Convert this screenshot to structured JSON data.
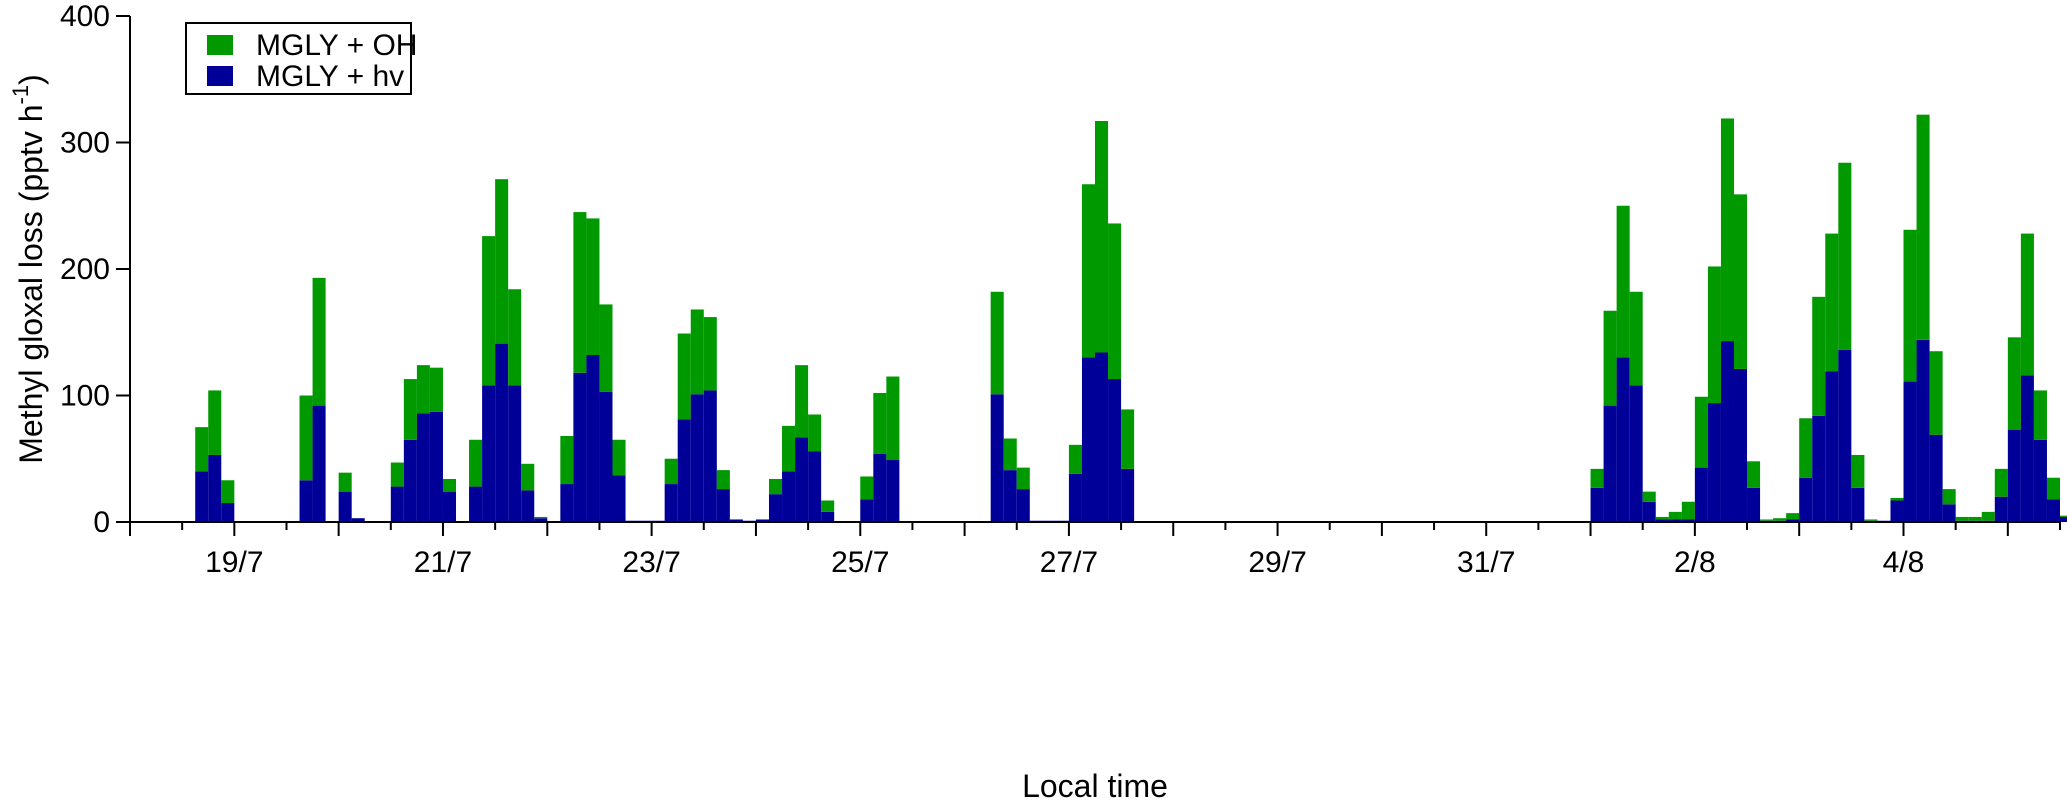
{
  "chart_data": {
    "type": "bar",
    "stacked": true,
    "xlabel": "Local time",
    "ylabel": "Methyl gloxal loss (pptv h",
    "ylabel_superscript": "-1",
    "ylabel_close": ")",
    "ylim": [
      0,
      400
    ],
    "xlim": [
      "18/7 00:00",
      "5/8 12:00"
    ],
    "yticks": [
      0,
      100,
      200,
      300,
      400
    ],
    "xtick_labels": [
      "19/7",
      "21/7",
      "23/7",
      "25/7",
      "27/7",
      "29/7",
      "31/7",
      "2/8",
      "4/8"
    ],
    "xtick_days": [
      1,
      3,
      5,
      7,
      9,
      11,
      13,
      15,
      17
    ],
    "grid": false,
    "legend_position": "top-left",
    "bin_hours": 3,
    "colors": {
      "MGLY + OH": "#009900",
      "MGLY + hv": "#000099"
    },
    "series": [
      {
        "name": "MGLY + hv",
        "color": "#000099",
        "data": [
          [
            "18/7 15:00",
            40
          ],
          [
            "18/7 18:00",
            53
          ],
          [
            "18/7 21:00",
            15
          ],
          [
            "19/7 15:00",
            33
          ],
          [
            "19/7 18:00",
            92
          ],
          [
            "20/7 00:00",
            24
          ],
          [
            "20/7 03:00",
            3
          ],
          [
            "20/7 12:00",
            28
          ],
          [
            "20/7 15:00",
            65
          ],
          [
            "20/7 18:00",
            86
          ],
          [
            "20/7 21:00",
            87
          ],
          [
            "21/7 00:00",
            24
          ],
          [
            "21/7 06:00",
            28
          ],
          [
            "21/7 09:00",
            108
          ],
          [
            "21/7 12:00",
            141
          ],
          [
            "21/7 15:00",
            108
          ],
          [
            "21/7 18:00",
            25
          ],
          [
            "21/7 21:00",
            3
          ],
          [
            "22/7 03:00",
            30
          ],
          [
            "22/7 06:00",
            118
          ],
          [
            "22/7 09:00",
            132
          ],
          [
            "22/7 12:00",
            103
          ],
          [
            "22/7 15:00",
            37
          ],
          [
            "22/7 18:00",
            1
          ],
          [
            "22/7 21:00",
            1
          ],
          [
            "23/7 00:00",
            1
          ],
          [
            "23/7 03:00",
            30
          ],
          [
            "23/7 06:00",
            81
          ],
          [
            "23/7 09:00",
            101
          ],
          [
            "23/7 12:00",
            104
          ],
          [
            "23/7 15:00",
            26
          ],
          [
            "23/7 18:00",
            2
          ],
          [
            "23/7 21:00",
            1
          ],
          [
            "24/7 00:00",
            2
          ],
          [
            "24/7 03:00",
            22
          ],
          [
            "24/7 06:00",
            40
          ],
          [
            "24/7 09:00",
            67
          ],
          [
            "24/7 12:00",
            56
          ],
          [
            "24/7 15:00",
            8
          ],
          [
            "25/7 00:00",
            18
          ],
          [
            "25/7 03:00",
            54
          ],
          [
            "25/7 06:00",
            49
          ],
          [
            "26/7 06:00",
            101
          ],
          [
            "26/7 09:00",
            41
          ],
          [
            "26/7 12:00",
            26
          ],
          [
            "26/7 15:00",
            1
          ],
          [
            "26/7 18:00",
            1
          ],
          [
            "26/7 21:00",
            1
          ],
          [
            "27/7 00:00",
            38
          ],
          [
            "27/7 03:00",
            130
          ],
          [
            "27/7 06:00",
            134
          ],
          [
            "27/7 09:00",
            113
          ],
          [
            "27/7 12:00",
            42
          ],
          [
            "1/8 00:00",
            27
          ],
          [
            "1/8 03:00",
            92
          ],
          [
            "1/8 06:00",
            130
          ],
          [
            "1/8 09:00",
            108
          ],
          [
            "1/8 12:00",
            16
          ],
          [
            "1/8 15:00",
            2
          ],
          [
            "1/8 18:00",
            2
          ],
          [
            "1/8 21:00",
            2
          ],
          [
            "2/8 00:00",
            43
          ],
          [
            "2/8 03:00",
            94
          ],
          [
            "2/8 06:00",
            143
          ],
          [
            "2/8 09:00",
            121
          ],
          [
            "2/8 12:00",
            27
          ],
          [
            "2/8 15:00",
            1
          ],
          [
            "2/8 18:00",
            1
          ],
          [
            "2/8 21:00",
            2
          ],
          [
            "3/8 00:00",
            35
          ],
          [
            "3/8 03:00",
            84
          ],
          [
            "3/8 06:00",
            119
          ],
          [
            "3/8 09:00",
            136
          ],
          [
            "3/8 12:00",
            27
          ],
          [
            "3/8 15:00",
            1
          ],
          [
            "3/8 18:00",
            1
          ],
          [
            "3/8 21:00",
            17
          ],
          [
            "4/8 00:00",
            111
          ],
          [
            "4/8 03:00",
            144
          ],
          [
            "4/8 06:00",
            69
          ],
          [
            "4/8 09:00",
            14
          ],
          [
            "4/8 12:00",
            1
          ],
          [
            "4/8 15:00",
            1
          ],
          [
            "4/8 18:00",
            1
          ],
          [
            "4/8 21:00",
            20
          ],
          [
            "5/8 00:00",
            73
          ],
          [
            "5/8 03:00",
            116
          ],
          [
            "5/8 06:00",
            65
          ],
          [
            "5/8 09:00",
            18
          ],
          [
            "5/8 12:00",
            4
          ]
        ]
      },
      {
        "name": "MGLY + OH",
        "color": "#009900",
        "data": [
          [
            "18/7 15:00",
            35
          ],
          [
            "18/7 18:00",
            51
          ],
          [
            "18/7 21:00",
            18
          ],
          [
            "19/7 15:00",
            67
          ],
          [
            "19/7 18:00",
            101
          ],
          [
            "20/7 00:00",
            15
          ],
          [
            "20/7 03:00",
            0
          ],
          [
            "20/7 12:00",
            19
          ],
          [
            "20/7 15:00",
            48
          ],
          [
            "20/7 18:00",
            38
          ],
          [
            "20/7 21:00",
            35
          ],
          [
            "21/7 00:00",
            10
          ],
          [
            "21/7 06:00",
            37
          ],
          [
            "21/7 09:00",
            118
          ],
          [
            "21/7 12:00",
            130
          ],
          [
            "21/7 15:00",
            76
          ],
          [
            "21/7 18:00",
            21
          ],
          [
            "21/7 21:00",
            1
          ],
          [
            "22/7 03:00",
            38
          ],
          [
            "22/7 06:00",
            127
          ],
          [
            "22/7 09:00",
            108
          ],
          [
            "22/7 12:00",
            69
          ],
          [
            "22/7 15:00",
            28
          ],
          [
            "22/7 18:00",
            0
          ],
          [
            "22/7 21:00",
            0
          ],
          [
            "23/7 00:00",
            0
          ],
          [
            "23/7 03:00",
            20
          ],
          [
            "23/7 06:00",
            68
          ],
          [
            "23/7 09:00",
            67
          ],
          [
            "23/7 12:00",
            58
          ],
          [
            "23/7 15:00",
            15
          ],
          [
            "23/7 18:00",
            0
          ],
          [
            "23/7 21:00",
            0
          ],
          [
            "24/7 00:00",
            0
          ],
          [
            "24/7 03:00",
            12
          ],
          [
            "24/7 06:00",
            36
          ],
          [
            "24/7 09:00",
            57
          ],
          [
            "24/7 12:00",
            29
          ],
          [
            "24/7 15:00",
            9
          ],
          [
            "25/7 00:00",
            18
          ],
          [
            "25/7 03:00",
            48
          ],
          [
            "25/7 06:00",
            66
          ],
          [
            "26/7 06:00",
            81
          ],
          [
            "26/7 09:00",
            25
          ],
          [
            "26/7 12:00",
            17
          ],
          [
            "26/7 15:00",
            0
          ],
          [
            "26/7 18:00",
            0
          ],
          [
            "26/7 21:00",
            0
          ],
          [
            "27/7 00:00",
            23
          ],
          [
            "27/7 03:00",
            137
          ],
          [
            "27/7 06:00",
            183
          ],
          [
            "27/7 09:00",
            123
          ],
          [
            "27/7 12:00",
            47
          ],
          [
            "1/8 00:00",
            15
          ],
          [
            "1/8 03:00",
            75
          ],
          [
            "1/8 06:00",
            120
          ],
          [
            "1/8 09:00",
            74
          ],
          [
            "1/8 12:00",
            8
          ],
          [
            "1/8 15:00",
            2
          ],
          [
            "1/8 18:00",
            6
          ],
          [
            "1/8 21:00",
            14
          ],
          [
            "2/8 00:00",
            56
          ],
          [
            "2/8 03:00",
            108
          ],
          [
            "2/8 06:00",
            176
          ],
          [
            "2/8 09:00",
            138
          ],
          [
            "2/8 12:00",
            21
          ],
          [
            "2/8 15:00",
            1
          ],
          [
            "2/8 18:00",
            2
          ],
          [
            "2/8 21:00",
            5
          ],
          [
            "3/8 00:00",
            47
          ],
          [
            "3/8 03:00",
            94
          ],
          [
            "3/8 06:00",
            109
          ],
          [
            "3/8 09:00",
            148
          ],
          [
            "3/8 12:00",
            26
          ],
          [
            "3/8 15:00",
            1
          ],
          [
            "3/8 18:00",
            0
          ],
          [
            "3/8 21:00",
            2
          ],
          [
            "4/8 00:00",
            120
          ],
          [
            "4/8 03:00",
            178
          ],
          [
            "4/8 06:00",
            66
          ],
          [
            "4/8 09:00",
            12
          ],
          [
            "4/8 12:00",
            3
          ],
          [
            "4/8 15:00",
            3
          ],
          [
            "4/8 18:00",
            7
          ],
          [
            "4/8 21:00",
            22
          ],
          [
            "5/8 00:00",
            73
          ],
          [
            "5/8 03:00",
            112
          ],
          [
            "5/8 06:00",
            39
          ],
          [
            "5/8 09:00",
            17
          ],
          [
            "5/8 12:00",
            1
          ]
        ]
      }
    ],
    "legend": [
      {
        "label": "MGLY + OH",
        "color": "#009900"
      },
      {
        "label": "MGLY + hv",
        "color": "#000099"
      }
    ]
  }
}
